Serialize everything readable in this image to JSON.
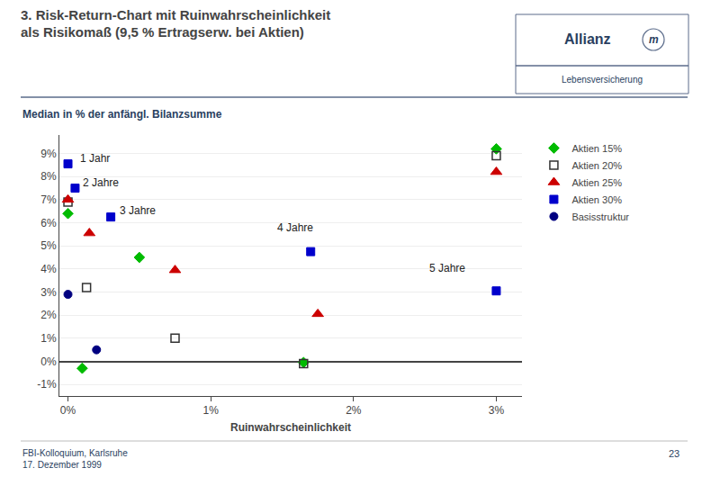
{
  "chart_data": {
    "type": "scatter",
    "title": "3. Risk-Return-Chart mit Ruinwahrscheinlichkeit\nals Risikomaß (9,5 % Ertragserw. bei Aktien)",
    "subtitle": "Median in % der anfängl. Bilanzsumme",
    "xlabel": "Ruinwahrscheinlichkeit",
    "series": [
      {
        "name": "Aktien 15%",
        "color": "#00bb00",
        "marker": "diamond",
        "x": [
          0.0,
          0.1,
          0.5,
          1.65,
          3.0
        ],
        "values": [
          6.4,
          -0.3,
          4.5,
          -0.05,
          9.2
        ]
      },
      {
        "name": "Aktien 20%",
        "color": "#333333",
        "marker": "square-open",
        "x": [
          0.0,
          0.13,
          0.75,
          1.65,
          3.0
        ],
        "values": [
          6.9,
          3.2,
          1.0,
          -0.1,
          8.9
        ]
      },
      {
        "name": "Aktien 25%",
        "color": "#cc0000",
        "marker": "triangle-up",
        "x": [
          0.0,
          0.15,
          0.75,
          1.75,
          3.0
        ],
        "values": [
          7.0,
          5.55,
          3.95,
          2.05,
          8.2
        ]
      },
      {
        "name": "Aktien 30%",
        "color": "#0000cc",
        "marker": "square",
        "x": [
          0.0,
          0.05,
          0.3,
          1.7,
          3.0
        ],
        "values": [
          8.55,
          7.5,
          6.25,
          4.75,
          3.05
        ]
      },
      {
        "name": "Basisstruktur",
        "color": "#000080",
        "marker": "circle",
        "x": [
          0.0,
          0.2
        ],
        "values": [
          2.9,
          0.5
        ]
      }
    ],
    "annotations": [
      {
        "text": "1 Jahr",
        "x": 0.07,
        "y": 8.45
      },
      {
        "text": "2 Jahre",
        "x": 0.09,
        "y": 7.38
      },
      {
        "text": "3 Jahre",
        "x": 0.35,
        "y": 6.18
      },
      {
        "text": "4 Jahre",
        "x": 1.45,
        "y": 5.45
      },
      {
        "text": "5 Jahre",
        "x": 2.52,
        "y": 3.68
      },
      {
        "text": "Allianz"
      },
      {
        "text": "m"
      },
      {
        "text": "Lebensversicherung"
      },
      {
        "text": "FBI-Kolloquium, Karlsruhe\n17. Dezember 1999"
      },
      {
        "text": "23"
      }
    ],
    "xlim": [
      -0.06,
      3.18
    ],
    "xticks": [
      {
        "value": 0,
        "label": "0%"
      },
      {
        "value": 1,
        "label": "1%"
      },
      {
        "value": 2,
        "label": "2%"
      },
      {
        "value": 3,
        "label": "3%"
      }
    ],
    "ylim": [
      -1.5,
      9.8
    ],
    "yticks": [
      {
        "value": -1,
        "label": "-1%"
      },
      {
        "value": 0,
        "label": "0%"
      },
      {
        "value": 1,
        "label": "1%"
      },
      {
        "value": 2,
        "label": "2%"
      },
      {
        "value": 3,
        "label": "3%"
      },
      {
        "value": 4,
        "label": "4%"
      },
      {
        "value": 5,
        "label": "5%"
      },
      {
        "value": 6,
        "label": "6%"
      },
      {
        "value": 7,
        "label": "7%"
      },
      {
        "value": 8,
        "label": "8%"
      },
      {
        "value": 9,
        "label": "9%"
      }
    ],
    "grid": "y",
    "legend": "upper right"
  }
}
